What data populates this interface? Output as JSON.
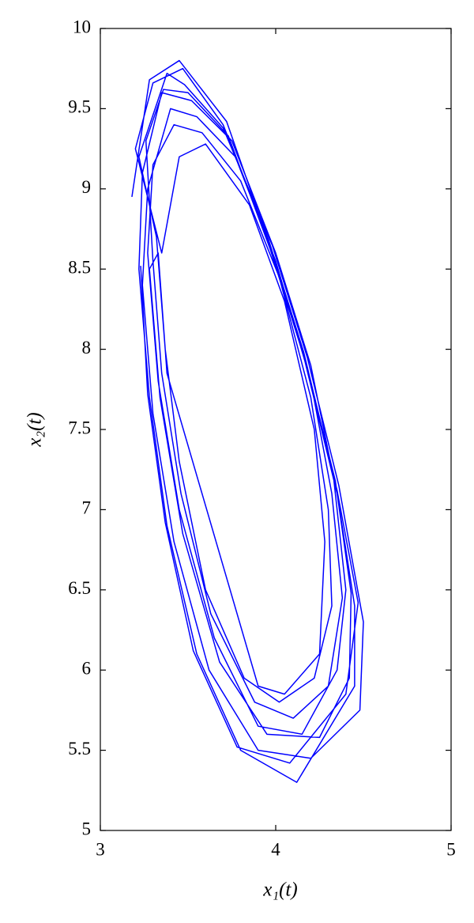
{
  "chart_data": {
    "type": "line",
    "xlabel": "x₁(t)",
    "ylabel": "x₂(t)",
    "color": "#0000ff",
    "xlim": [
      3,
      5
    ],
    "ylim": [
      5,
      10
    ],
    "xticks": [
      3,
      4,
      5
    ],
    "yticks": [
      5,
      5.5,
      6,
      6.5,
      7,
      7.5,
      8,
      8.5,
      9,
      9.5,
      10
    ],
    "x": [
      3.18,
      3.28,
      3.45,
      3.72,
      3.95,
      4.15,
      4.35,
      4.45,
      4.45,
      4.12,
      3.8,
      3.55,
      3.38,
      3.28,
      3.22,
      3.24,
      3.35,
      3.52,
      3.75,
      4.0,
      4.2,
      4.33,
      4.4,
      4.35,
      4.15,
      3.9,
      3.65,
      3.45,
      3.33,
      3.27,
      3.3,
      3.42,
      3.58,
      3.8,
      4.02,
      4.2,
      4.3,
      4.32,
      4.22,
      4.02,
      3.82,
      3.6,
      3.45,
      3.37,
      3.32,
      3.22,
      3.38,
      3.48,
      3.7,
      3.98,
      4.18,
      4.36,
      4.5,
      4.48,
      4.2,
      3.9,
      3.62,
      3.42,
      3.3,
      3.24,
      3.27,
      3.4,
      3.55,
      3.77,
      4.0,
      4.2,
      4.32,
      4.38,
      4.3,
      4.1,
      3.88,
      3.63,
      3.46,
      3.35,
      3.3,
      3.26,
      3.36,
      3.5,
      3.73,
      3.97,
      4.17,
      4.34,
      4.43,
      4.42,
      4.25,
      3.95,
      3.68,
      3.47,
      3.34,
      3.28,
      3.33,
      3.38,
      3.9,
      4.05,
      4.25,
      4.28,
      4.22,
      4.05,
      3.85,
      3.6,
      3.45,
      3.35,
      3.2,
      3.3,
      3.47,
      3.7,
      3.96,
      4.16,
      4.35,
      4.47,
      4.4,
      4.08,
      3.78,
      3.53,
      3.37,
      3.27,
      3.23
    ],
    "values": [
      8.95,
      9.68,
      9.8,
      9.42,
      8.7,
      8.0,
      7.1,
      6.4,
      5.9,
      5.3,
      5.5,
      6.1,
      6.9,
      7.7,
      8.5,
      9.1,
      9.6,
      9.55,
      9.3,
      8.6,
      7.9,
      7.2,
      6.5,
      6.0,
      5.6,
      5.65,
      6.2,
      7.0,
      7.8,
      8.6,
      9.15,
      9.4,
      9.35,
      9.05,
      8.45,
      7.7,
      7.0,
      6.4,
      5.95,
      5.8,
      5.95,
      6.5,
      7.3,
      8.0,
      8.7,
      9.2,
      9.72,
      9.65,
      9.38,
      8.65,
      7.95,
      7.15,
      6.3,
      5.75,
      5.45,
      5.5,
      6.0,
      6.8,
      7.6,
      8.4,
      9.0,
      9.5,
      9.45,
      9.2,
      8.55,
      7.8,
      7.1,
      6.45,
      5.9,
      5.7,
      5.8,
      6.35,
      7.1,
      7.85,
      8.55,
      9.3,
      9.62,
      9.6,
      9.33,
      8.62,
      7.92,
      7.18,
      6.48,
      5.95,
      5.58,
      5.6,
      6.05,
      6.85,
      7.7,
      8.5,
      8.6,
      7.85,
      5.9,
      5.85,
      6.1,
      6.8,
      7.5,
      8.3,
      8.9,
      9.28,
      9.2,
      8.6,
      9.25,
      9.66,
      9.75,
      9.4,
      8.68,
      7.98,
      7.12,
      6.42,
      5.85,
      5.42,
      5.52,
      6.12,
      6.92,
      7.72,
      8.52
    ]
  }
}
